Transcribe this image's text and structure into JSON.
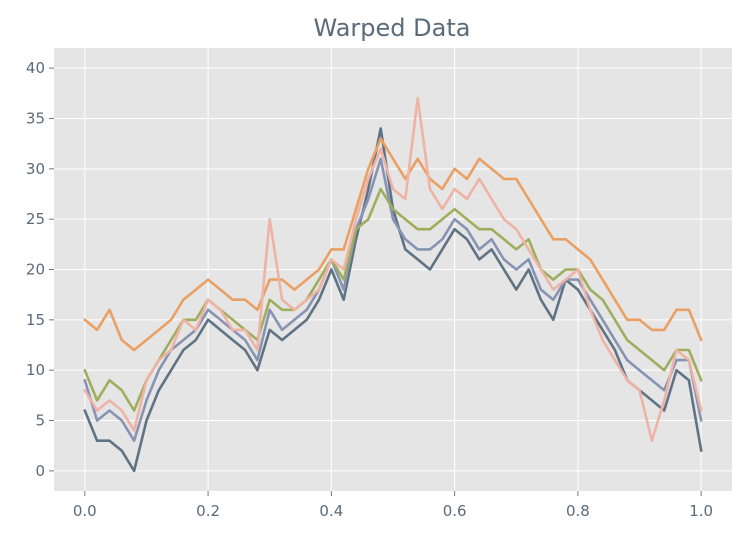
{
  "chart_data": {
    "type": "line",
    "title": "Warped Data",
    "xlabel": "",
    "ylabel": "",
    "xlim": [
      -0.05,
      1.05
    ],
    "ylim": [
      -2,
      42
    ],
    "grid": true,
    "background": "#e5e5e5",
    "x_ticks": [
      0.0,
      0.2,
      0.4,
      0.6,
      0.8,
      1.0
    ],
    "x_tick_labels": [
      "0.0",
      "0.2",
      "0.4",
      "0.6",
      "0.8",
      "1.0"
    ],
    "y_ticks": [
      0,
      5,
      10,
      15,
      20,
      25,
      30,
      35,
      40
    ],
    "y_tick_labels": [
      "0",
      "5",
      "10",
      "15",
      "20",
      "25",
      "30",
      "35",
      "40"
    ],
    "x": [
      0.0,
      0.02,
      0.04,
      0.06,
      0.08,
      0.1,
      0.12,
      0.14,
      0.16,
      0.18,
      0.2,
      0.22,
      0.24,
      0.26,
      0.28,
      0.3,
      0.32,
      0.34,
      0.36,
      0.38,
      0.4,
      0.42,
      0.44,
      0.46,
      0.48,
      0.5,
      0.52,
      0.54,
      0.56,
      0.58,
      0.6,
      0.62,
      0.64,
      0.66,
      0.68,
      0.7,
      0.72,
      0.74,
      0.76,
      0.78,
      0.8,
      0.82,
      0.84,
      0.86,
      0.88,
      0.9,
      0.92,
      0.94,
      0.96,
      0.98,
      1.0
    ],
    "series": [
      {
        "color": "#5f7385",
        "values": [
          6,
          3,
          3,
          2,
          0,
          5,
          8,
          10,
          12,
          13,
          15,
          14,
          13,
          12,
          10,
          14,
          13,
          14,
          15,
          17,
          20,
          17,
          23,
          28,
          34,
          26,
          22,
          21,
          20,
          22,
          24,
          23,
          21,
          22,
          20,
          18,
          20,
          17,
          15,
          19,
          18,
          16,
          14,
          12,
          9,
          8,
          7,
          6,
          10,
          9,
          2
        ]
      },
      {
        "color": "#8793b3",
        "values": [
          9,
          5,
          6,
          5,
          3,
          7,
          10,
          12,
          13,
          14,
          16,
          15,
          14,
          13,
          11,
          16,
          14,
          15,
          16,
          18,
          21,
          18,
          24,
          27,
          31,
          25,
          23,
          22,
          22,
          23,
          25,
          24,
          22,
          23,
          21,
          20,
          21,
          18,
          17,
          19,
          19,
          17,
          15,
          13,
          11,
          10,
          9,
          8,
          11,
          11,
          5
        ]
      },
      {
        "color": "#9fad5c",
        "values": [
          10,
          7,
          9,
          8,
          6,
          9,
          11,
          13,
          15,
          15,
          17,
          16,
          15,
          14,
          13,
          17,
          16,
          16,
          17,
          19,
          21,
          19,
          24,
          25,
          28,
          26,
          25,
          24,
          24,
          25,
          26,
          25,
          24,
          24,
          23,
          22,
          23,
          20,
          19,
          20,
          20,
          18,
          17,
          15,
          13,
          12,
          11,
          10,
          12,
          12,
          9
        ]
      },
      {
        "color": "#eaa063",
        "values": [
          15,
          14,
          16,
          13,
          12,
          13,
          14,
          15,
          17,
          18,
          19,
          18,
          17,
          17,
          16,
          19,
          19,
          18,
          19,
          20,
          22,
          22,
          26,
          30,
          33,
          31,
          29,
          31,
          29,
          28,
          30,
          29,
          31,
          30,
          29,
          29,
          27,
          25,
          23,
          23,
          22,
          21,
          19,
          17,
          15,
          15,
          14,
          14,
          16,
          16,
          13
        ]
      },
      {
        "color": "#efb3a6",
        "values": [
          8,
          6,
          7,
          6,
          4,
          9,
          11,
          12,
          15,
          14,
          17,
          16,
          14,
          14,
          12,
          25,
          17,
          16,
          17,
          18,
          21,
          20,
          25,
          29,
          32,
          28,
          27,
          37,
          28,
          26,
          28,
          27,
          29,
          27,
          25,
          24,
          22,
          20,
          18,
          19,
          20,
          16,
          13,
          11,
          9,
          8,
          3,
          7,
          12,
          11,
          6
        ]
      }
    ]
  }
}
